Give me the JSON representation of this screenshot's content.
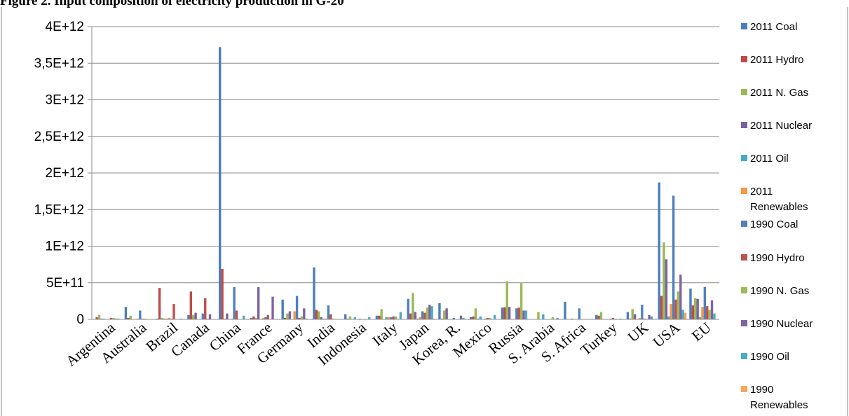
{
  "figure_title": "Figure 2. Input composition of electricity production in G-20",
  "chart_data": {
    "type": "bar",
    "title": "",
    "xlabel": "",
    "ylabel": "",
    "ylim": [
      0,
      4000000000000
    ],
    "yticks": [
      {
        "value": 0,
        "label": "0"
      },
      {
        "value": 500000000000,
        "label": "5E+11"
      },
      {
        "value": 1000000000000,
        "label": "1E+12"
      },
      {
        "value": 1500000000000,
        "label": "1,5E+12"
      },
      {
        "value": 2000000000000,
        "label": "2E+12"
      },
      {
        "value": 2500000000000,
        "label": "2,5E+12"
      },
      {
        "value": 3000000000000,
        "label": "3E+12"
      },
      {
        "value": 3500000000000,
        "label": "3,5E+12"
      },
      {
        "value": 4000000000000,
        "label": "4E+12"
      }
    ],
    "grid": true,
    "legend_position": "right",
    "categories": [
      "Argentina",
      "Australia",
      "Brazil",
      "Canada",
      "China",
      "France",
      "Germany",
      "India",
      "Indonesia",
      "Italy",
      "Japan",
      "Korea, R.",
      "Mexico",
      "Russia",
      "S. Arabia",
      "S. Africa",
      "Turkey",
      "UK",
      "USA",
      "EU"
    ],
    "series": [
      {
        "name": "2011 Coal",
        "color": "#4a7ebb",
        "values": [
          0,
          170000000000.0,
          10000000000.0,
          60000000000.0,
          3720000000000.0,
          20000000000.0,
          270000000000.0,
          710000000000.0,
          70000000000.0,
          50000000000.0,
          280000000000.0,
          220000000000.0,
          30000000000.0,
          160000000000.0,
          0,
          240000000000.0,
          60000000000.0,
          100000000000.0,
          1870000000000.0,
          420000000000.0
        ]
      },
      {
        "name": "2011 Hydro",
        "color": "#be4b48",
        "values": [
          30000000000.0,
          20000000000.0,
          430000000000.0,
          380000000000.0,
          690000000000.0,
          40000000000.0,
          20000000000.0,
          130000000000.0,
          10000000000.0,
          50000000000.0,
          80000000000.0,
          10000000000.0,
          40000000000.0,
          165000000000.0,
          0,
          0,
          50000000000.0,
          10000000000.0,
          320000000000.0,
          190000000000.0
        ]
      },
      {
        "name": "2011 N. Gas",
        "color": "#98b954",
        "values": [
          60000000000.0,
          50000000000.0,
          20000000000.0,
          60000000000.0,
          10000000000.0,
          20000000000.0,
          80000000000.0,
          110000000000.0,
          40000000000.0,
          140000000000.0,
          360000000000.0,
          120000000000.0,
          150000000000.0,
          520000000000.0,
          100000000000.0,
          0,
          100000000000.0,
          140000000000.0,
          1050000000000.0,
          290000000000.0
        ]
      },
      {
        "name": "2011 Nuclear",
        "color": "#7d60a0",
        "values": [
          10000000000.0,
          0,
          10000000000.0,
          90000000000.0,
          80000000000.0,
          440000000000.0,
          110000000000.0,
          30000000000.0,
          0,
          0,
          100000000000.0,
          150000000000.0,
          10000000000.0,
          170000000000.0,
          0,
          10000000000.0,
          0,
          70000000000.0,
          820000000000.0,
          280000000000.0
        ]
      },
      {
        "name": "2011 Oil",
        "color": "#46aac5",
        "values": [
          10000000000.0,
          0,
          10000000000.0,
          0,
          0,
          0,
          0,
          10000000000.0,
          30000000000.0,
          30000000000.0,
          10000000000.0,
          0,
          40000000000.0,
          0,
          70000000000.0,
          0,
          0,
          0,
          40000000000.0,
          30000000000.0
        ]
      },
      {
        "name": "2011 Renewables",
        "color": "#f79646",
        "values": [
          0,
          10000000000.0,
          20000000000.0,
          0,
          10000000000.0,
          20000000000.0,
          110000000000.0,
          10000000000.0,
          0,
          30000000000.0,
          30000000000.0,
          0,
          0,
          0,
          0,
          0,
          0,
          20000000000.0,
          210000000000.0,
          170000000000.0
        ]
      },
      {
        "name": "1990 Coal",
        "color": "#4f81bd",
        "values": [
          0,
          120000000000.0,
          10000000000.0,
          80000000000.0,
          440000000000.0,
          30000000000.0,
          320000000000.0,
          190000000000.0,
          10000000000.0,
          30000000000.0,
          110000000000.0,
          20000000000.0,
          10000000000.0,
          150000000000.0,
          0,
          150000000000.0,
          10000000000.0,
          200000000000.0,
          1690000000000.0,
          440000000000.0
        ]
      },
      {
        "name": "1990 Hydro",
        "color": "#c0504d",
        "values": [
          20000000000.0,
          10000000000.0,
          210000000000.0,
          290000000000.0,
          120000000000.0,
          60000000000.0,
          20000000000.0,
          70000000000.0,
          0,
          40000000000.0,
          90000000000.0,
          0,
          20000000000.0,
          160000000000.0,
          0,
          0,
          20000000000.0,
          10000000000.0,
          270000000000.0,
          180000000000.0
        ]
      },
      {
        "name": "1990 N. Gas",
        "color": "#9bbb59",
        "values": [
          20000000000.0,
          10000000000.0,
          0,
          10000000000.0,
          0,
          0,
          40000000000.0,
          10000000000.0,
          0,
          40000000000.0,
          160000000000.0,
          0,
          20000000000.0,
          500000000000.0,
          30000000000.0,
          0,
          10000000000.0,
          0,
          380000000000.0,
          130000000000.0
        ]
      },
      {
        "name": "1990 Nuclear",
        "color": "#8064a2",
        "values": [
          10000000000.0,
          0,
          0,
          70000000000.0,
          0,
          310000000000.0,
          150000000000.0,
          0,
          0,
          0,
          200000000000.0,
          50000000000.0,
          0,
          120000000000.0,
          0,
          0,
          0,
          60000000000.0,
          610000000000.0,
          260000000000.0
        ]
      },
      {
        "name": "1990 Oil",
        "color": "#4bacc6",
        "values": [
          10000000000.0,
          0,
          10000000000.0,
          0,
          50000000000.0,
          0,
          10000000000.0,
          0,
          30000000000.0,
          100000000000.0,
          180000000000.0,
          20000000000.0,
          60000000000.0,
          120000000000.0,
          20000000000.0,
          0,
          10000000000.0,
          40000000000.0,
          130000000000.0,
          80000000000.0
        ]
      },
      {
        "name": "1990 Renewables",
        "color": "#f9a55a",
        "values": [
          0,
          0,
          0,
          0,
          0,
          0,
          0,
          0,
          0,
          0,
          10000000000.0,
          0,
          0,
          0,
          0,
          0,
          0,
          0,
          90000000000.0,
          0
        ]
      }
    ]
  }
}
